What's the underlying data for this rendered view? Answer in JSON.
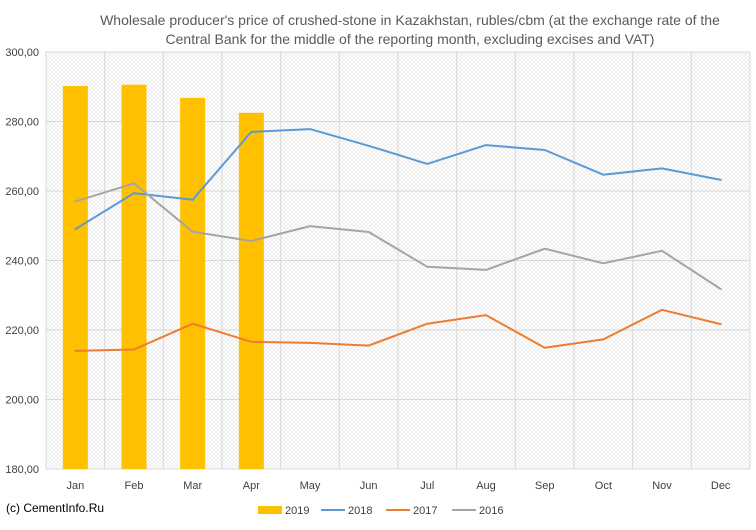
{
  "chart_data": {
    "type": "bar+line",
    "title_lines": [
      "Wholesale producer's price of crushed-stone in Kazakhstan, rubles/cbm (at the exchange rate of the",
      "Central Bank for the middle of the reporting month, excluding excises and VAT)"
    ],
    "categories": [
      "Jan",
      "Feb",
      "Mar",
      "Apr",
      "May",
      "Jun",
      "Jul",
      "Aug",
      "Sep",
      "Oct",
      "Nov",
      "Dec"
    ],
    "ylim": [
      180,
      300
    ],
    "yticks": [
      180,
      200,
      220,
      240,
      260,
      280,
      300
    ],
    "ytick_labels": [
      "180,00",
      "200,00",
      "220,00",
      "240,00",
      "260,00",
      "280,00",
      "300,00"
    ],
    "grid": true,
    "legend_position": "bottom",
    "series": [
      {
        "name": "2019",
        "kind": "bar",
        "color": "#FFC000",
        "values": [
          290.2,
          290.6,
          286.8,
          282.5,
          null,
          null,
          null,
          null,
          null,
          null,
          null,
          null
        ]
      },
      {
        "name": "2018",
        "kind": "line",
        "color": "#5B9BD5",
        "values": [
          249.0,
          259.4,
          257.5,
          277.0,
          277.8,
          273.0,
          267.8,
          273.2,
          271.8,
          264.7,
          266.5,
          263.2
        ]
      },
      {
        "name": "2017",
        "kind": "line",
        "color": "#ED7D31",
        "values": [
          214.0,
          214.4,
          221.8,
          216.6,
          216.3,
          215.5,
          221.8,
          224.3,
          214.9,
          217.3,
          225.8,
          221.7
        ]
      },
      {
        "name": "2016",
        "kind": "line",
        "color": "#A5A5A5",
        "values": [
          257.0,
          262.2,
          248.3,
          245.6,
          249.9,
          248.2,
          238.2,
          237.3,
          243.4,
          239.2,
          242.8,
          231.8
        ]
      }
    ]
  },
  "credit": "(c) CementInfo.Ru"
}
